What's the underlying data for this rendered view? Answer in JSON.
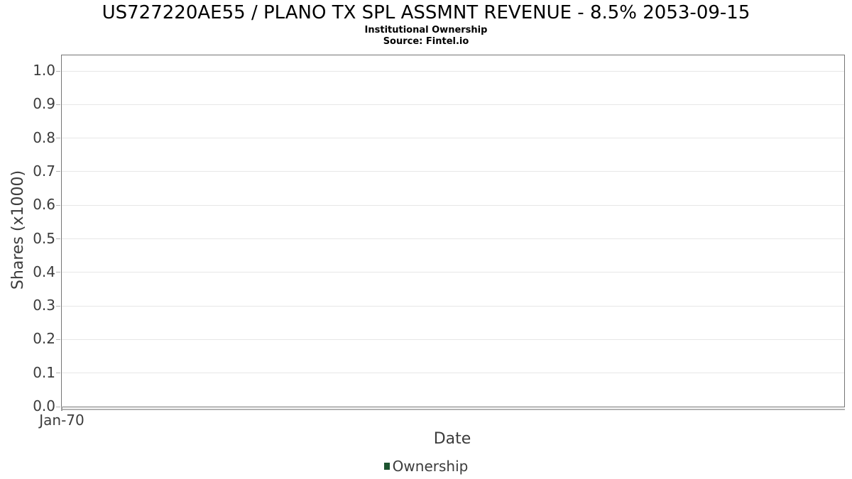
{
  "chart_data": {
    "type": "line",
    "title": "US727220AE55 / PLANO TX SPL ASSMNT REVENUE - 8.5% 2053-09-15",
    "subtitle": "Institutional Ownership",
    "source": "Source: Fintel.io",
    "xlabel": "Date",
    "ylabel": "Shares (x1000)",
    "x_ticks": [
      "Jan-70"
    ],
    "y_ticks": [
      "0.0",
      "0.1",
      "0.2",
      "0.3",
      "0.4",
      "0.5",
      "0.6",
      "0.7",
      "0.8",
      "0.9",
      "1.0"
    ],
    "ylim": [
      0.0,
      1.047
    ],
    "grid": true,
    "legend": {
      "position": "bottom",
      "entries": [
        {
          "label": "Ownership",
          "color": "#1d5430"
        }
      ]
    },
    "series": [
      {
        "name": "Ownership",
        "x": [],
        "values": []
      }
    ],
    "colors": {
      "plot_border": "#757575",
      "gridline": "#e7e7e7",
      "tick": "#b5b5b5",
      "axis_text": "#3c3c3c",
      "title_text": "#000000",
      "legend_marker": "#1d5430",
      "background": "#ffffff"
    }
  }
}
